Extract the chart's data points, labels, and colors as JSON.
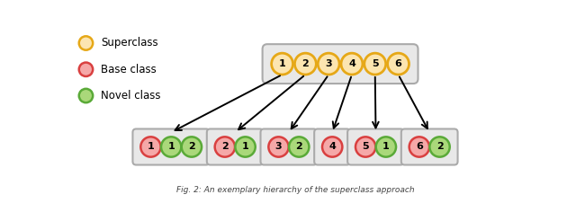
{
  "fig_width": 6.4,
  "fig_height": 2.46,
  "dpi": 100,
  "bg_color": "#ffffff",
  "superclass_fill": "#fce5b0",
  "superclass_edge": "#e6a817",
  "base_fill": "#f5a8a8",
  "base_edge": "#d94040",
  "novel_fill": "#aad87a",
  "novel_edge": "#5aaa38",
  "box_fill": "#e8e8e8",
  "box_edge": "#aaaaaa",
  "superclasses": [
    1,
    2,
    3,
    4,
    5,
    6
  ],
  "subgroups": [
    {
      "base": 1,
      "novels": [
        1,
        2
      ]
    },
    {
      "base": 2,
      "novels": [
        1
      ]
    },
    {
      "base": 3,
      "novels": [
        2
      ]
    },
    {
      "base": 4,
      "novels": []
    },
    {
      "base": 5,
      "novels": [
        1
      ]
    },
    {
      "base": 6,
      "novels": [
        2
      ]
    }
  ],
  "legend_items": [
    {
      "label": "Superclass",
      "fill": "#fce5b0",
      "edge": "#e6a817"
    },
    {
      "label": "Base class",
      "fill": "#f5a8a8",
      "edge": "#d94040"
    },
    {
      "label": "Novel class",
      "fill": "#aad87a",
      "edge": "#5aaa38"
    }
  ],
  "caption": "Fig. 2: An exemplary hierarchy of the superclass approach"
}
